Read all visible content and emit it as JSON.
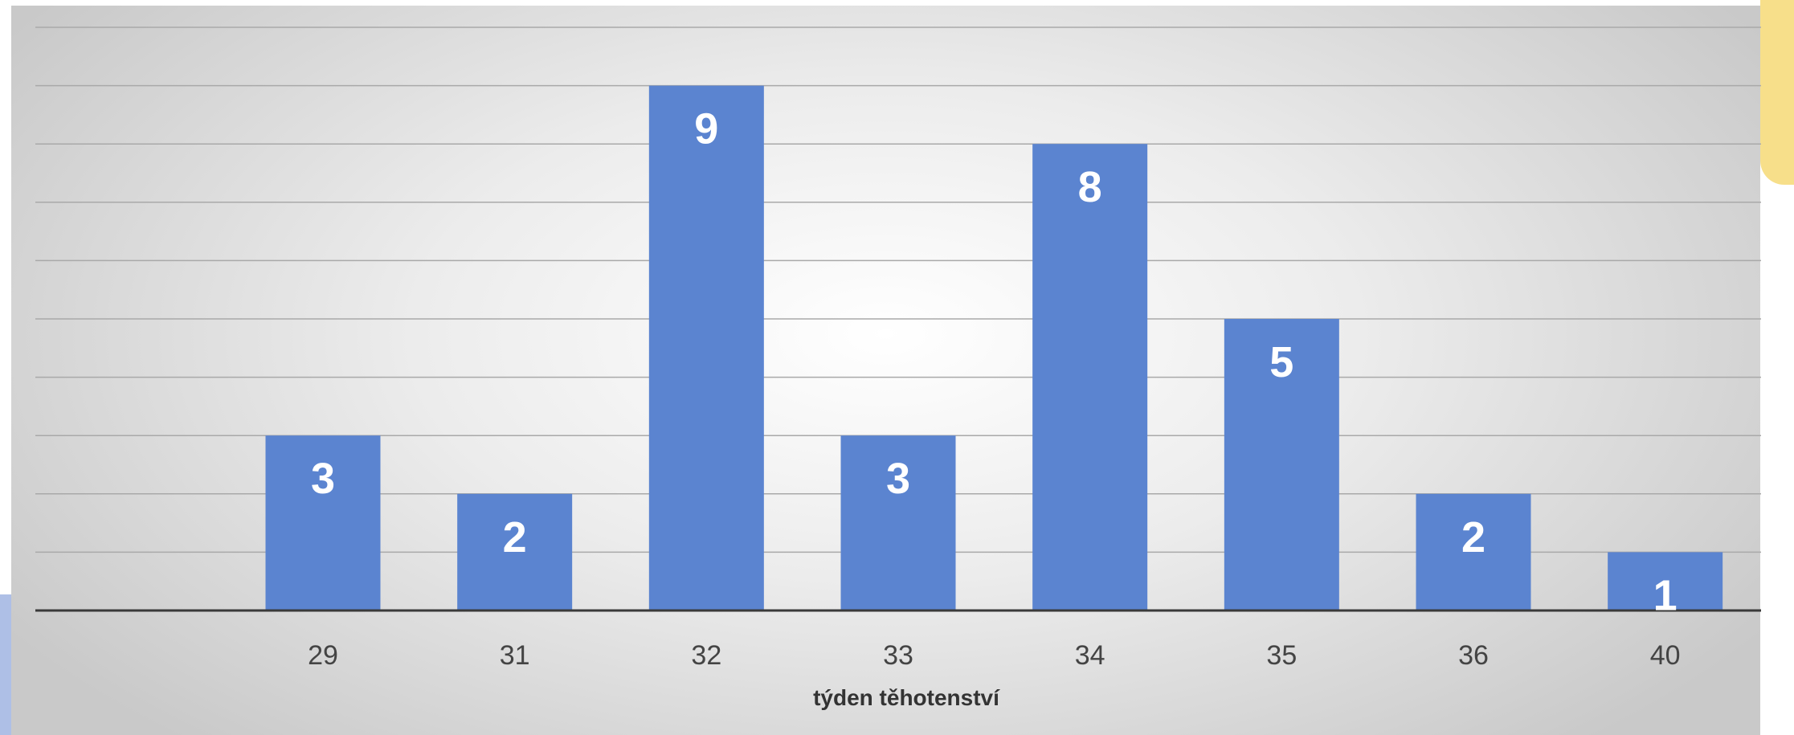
{
  "chart_data": {
    "type": "bar",
    "categories": [
      "29",
      "31",
      "32",
      "33",
      "34",
      "35",
      "36",
      "40"
    ],
    "values": [
      3,
      2,
      9,
      3,
      8,
      5,
      2,
      1
    ],
    "title": "",
    "xlabel": "týden těhotenství",
    "ylabel": "",
    "ylim": [
      0,
      10
    ],
    "grid": true,
    "legend": "none",
    "bar_color": "#5b84d0",
    "label_color": "#ffffff"
  }
}
